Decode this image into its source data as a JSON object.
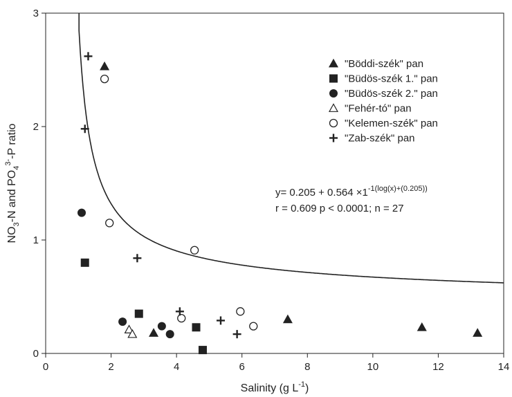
{
  "chart_data": {
    "type": "scatter",
    "xlabel": {
      "main": "Salinity (g L",
      "sup": "-1",
      "tail": ")"
    },
    "ylabel": {
      "p1": "NO",
      "s1": "3",
      "p2": "-N and PO",
      "s2": "4",
      "sup": "3-",
      "p3": "-P ratio"
    },
    "xlim": [
      0,
      14
    ],
    "ylim": [
      0,
      3
    ],
    "xticks": [
      "0",
      "2",
      "4",
      "6",
      "8",
      "10",
      "12",
      "14"
    ],
    "yticks": [
      "0",
      "1",
      "2",
      "3"
    ],
    "grid": false,
    "legend_position": "top-right",
    "series": [
      {
        "name": "\"Böddi-szék\" pan",
        "marker": "filled-triangle",
        "points": [
          [
            1.8,
            2.53
          ],
          [
            3.3,
            0.18
          ],
          [
            7.4,
            0.3
          ],
          [
            11.5,
            0.23
          ],
          [
            13.2,
            0.18
          ]
        ]
      },
      {
        "name": "\"Büdös-szék 1.\" pan",
        "marker": "filled-square",
        "points": [
          [
            1.2,
            0.8
          ],
          [
            2.85,
            0.35
          ],
          [
            4.6,
            0.23
          ],
          [
            4.8,
            0.03
          ]
        ]
      },
      {
        "name": "\"Büdös-szék 2.\" pan",
        "marker": "filled-circle",
        "points": [
          [
            1.1,
            1.24
          ],
          [
            2.35,
            0.28
          ],
          [
            3.55,
            0.24
          ],
          [
            3.8,
            0.17
          ]
        ]
      },
      {
        "name": "\"Fehér-tó\" pan",
        "marker": "open-triangle",
        "points": [
          [
            2.55,
            0.21
          ],
          [
            2.65,
            0.17
          ]
        ]
      },
      {
        "name": "\"Kelemen-szék\" pan",
        "marker": "open-circle",
        "points": [
          [
            1.8,
            2.42
          ],
          [
            1.95,
            1.15
          ],
          [
            4.15,
            0.31
          ],
          [
            4.55,
            0.91
          ],
          [
            5.95,
            0.37
          ],
          [
            6.35,
            0.24
          ]
        ]
      },
      {
        "name": "\"Zab-szék\" pan",
        "marker": "plus",
        "points": [
          [
            1.3,
            2.62
          ],
          [
            1.2,
            1.98
          ],
          [
            2.8,
            0.84
          ],
          [
            4.1,
            0.37
          ],
          [
            5.35,
            0.29
          ],
          [
            5.85,
            0.17
          ]
        ]
      }
    ],
    "fit_curve": {
      "a": 0.205,
      "b": 0.564,
      "c": 0.205
    },
    "annotations": [
      {
        "id": "equation",
        "main": "y= 0.205 + 0.564 ×1",
        "sup": "-1(log(x)+(0.205))"
      },
      {
        "id": "stats",
        "text": "r = 0.609 p < 0.0001; n = 27"
      }
    ]
  }
}
